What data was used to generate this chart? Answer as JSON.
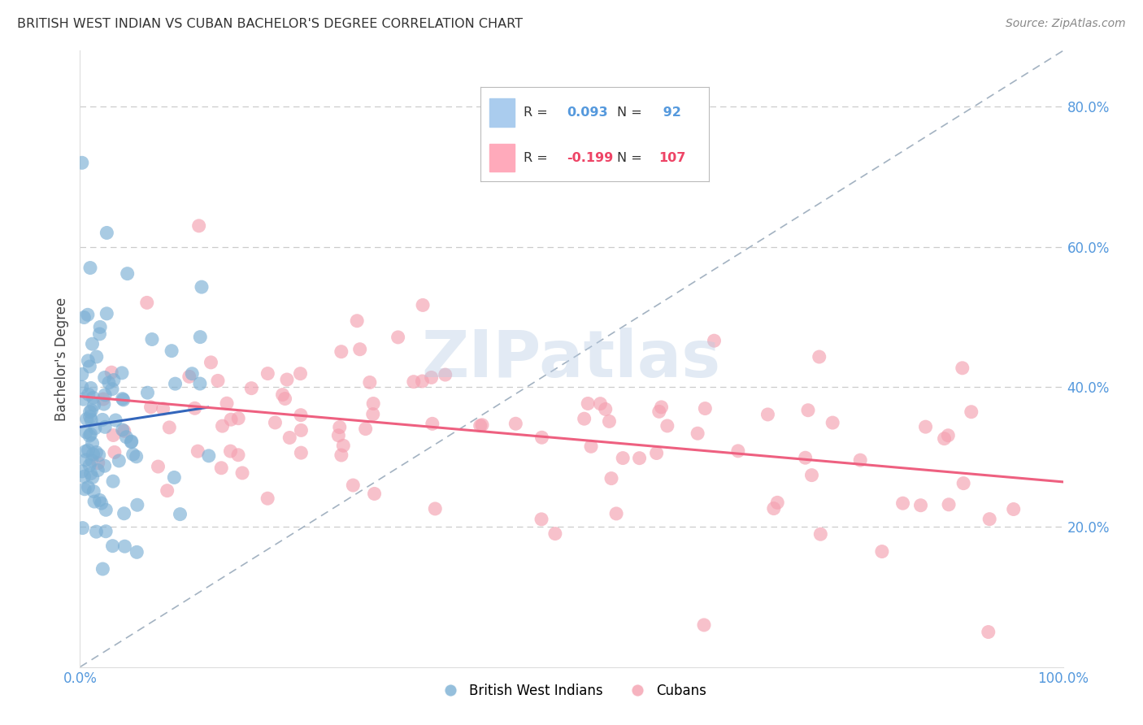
{
  "title": "BRITISH WEST INDIAN VS CUBAN BACHELOR'S DEGREE CORRELATION CHART",
  "source": "Source: ZipAtlas.com",
  "ylabel": "Bachelor's Degree",
  "yticks": [
    0.2,
    0.4,
    0.6,
    0.8
  ],
  "ytick_labels": [
    "20.0%",
    "40.0%",
    "60.0%",
    "80.0%"
  ],
  "xtick_labels": [
    "0.0%",
    "100.0%"
  ],
  "xlim": [
    0.0,
    1.0
  ],
  "ylim": [
    0.0,
    0.88
  ],
  "blue_R": 0.093,
  "blue_N": 92,
  "pink_R": -0.199,
  "pink_N": 107,
  "blue_color": "#7BAFD4",
  "pink_color": "#F4A0B0",
  "blue_trend_color": "#3366BB",
  "pink_trend_color": "#EE6080",
  "legend_label_blue": "British West Indians",
  "legend_label_pink": "Cubans",
  "watermark": "ZIPatlas",
  "watermark_color": "#B8CCE4",
  "background_color": "#FFFFFF",
  "grid_color": "#CCCCCC",
  "tick_color": "#5599DD",
  "title_color": "#333333",
  "source_color": "#888888",
  "ylabel_color": "#444444"
}
